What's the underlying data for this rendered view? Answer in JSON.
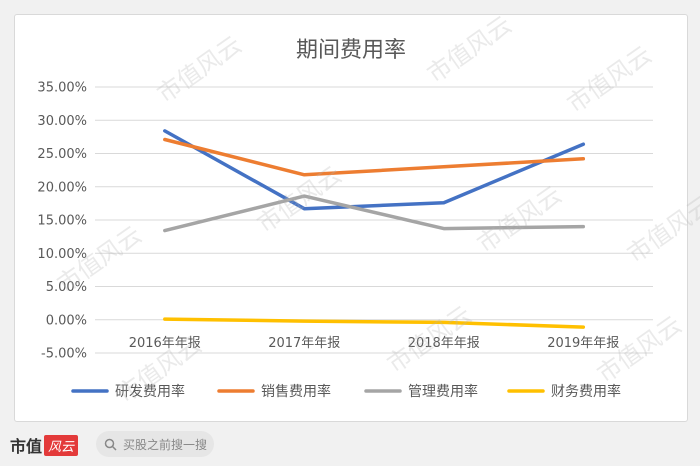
{
  "chart_data": {
    "type": "line",
    "title": "期间费用率",
    "categories": [
      "2016年年报",
      "2017年年报",
      "2018年年报",
      "2019年年报"
    ],
    "ylim": [
      -0.05,
      0.35
    ],
    "yticks": [
      "35.00%",
      "30.00%",
      "25.00%",
      "20.00%",
      "15.00%",
      "10.00%",
      "5.00%",
      "0.00%",
      "-5.00%"
    ],
    "ytick_values": [
      0.35,
      0.3,
      0.25,
      0.2,
      0.15,
      0.1,
      0.05,
      0.0,
      -0.05
    ],
    "grid": true,
    "legend_position": "bottom",
    "series": [
      {
        "name": "研发费用率",
        "color": "#4472c4",
        "values": [
          0.284,
          0.167,
          0.176,
          0.264
        ]
      },
      {
        "name": "销售费用率",
        "color": "#ed7d31",
        "values": [
          0.271,
          0.218,
          0.23,
          0.242
        ]
      },
      {
        "name": "管理费用率",
        "color": "#a5a5a5",
        "values": [
          0.134,
          0.186,
          0.137,
          0.14
        ]
      },
      {
        "name": "财务费用率",
        "color": "#ffc000",
        "values": [
          0.001,
          -0.002,
          -0.004,
          -0.011
        ]
      }
    ]
  },
  "watermark": "市值风云",
  "footer": {
    "brand": "市值",
    "brand_logo": "风云",
    "search_placeholder": "买股之前搜一搜"
  }
}
